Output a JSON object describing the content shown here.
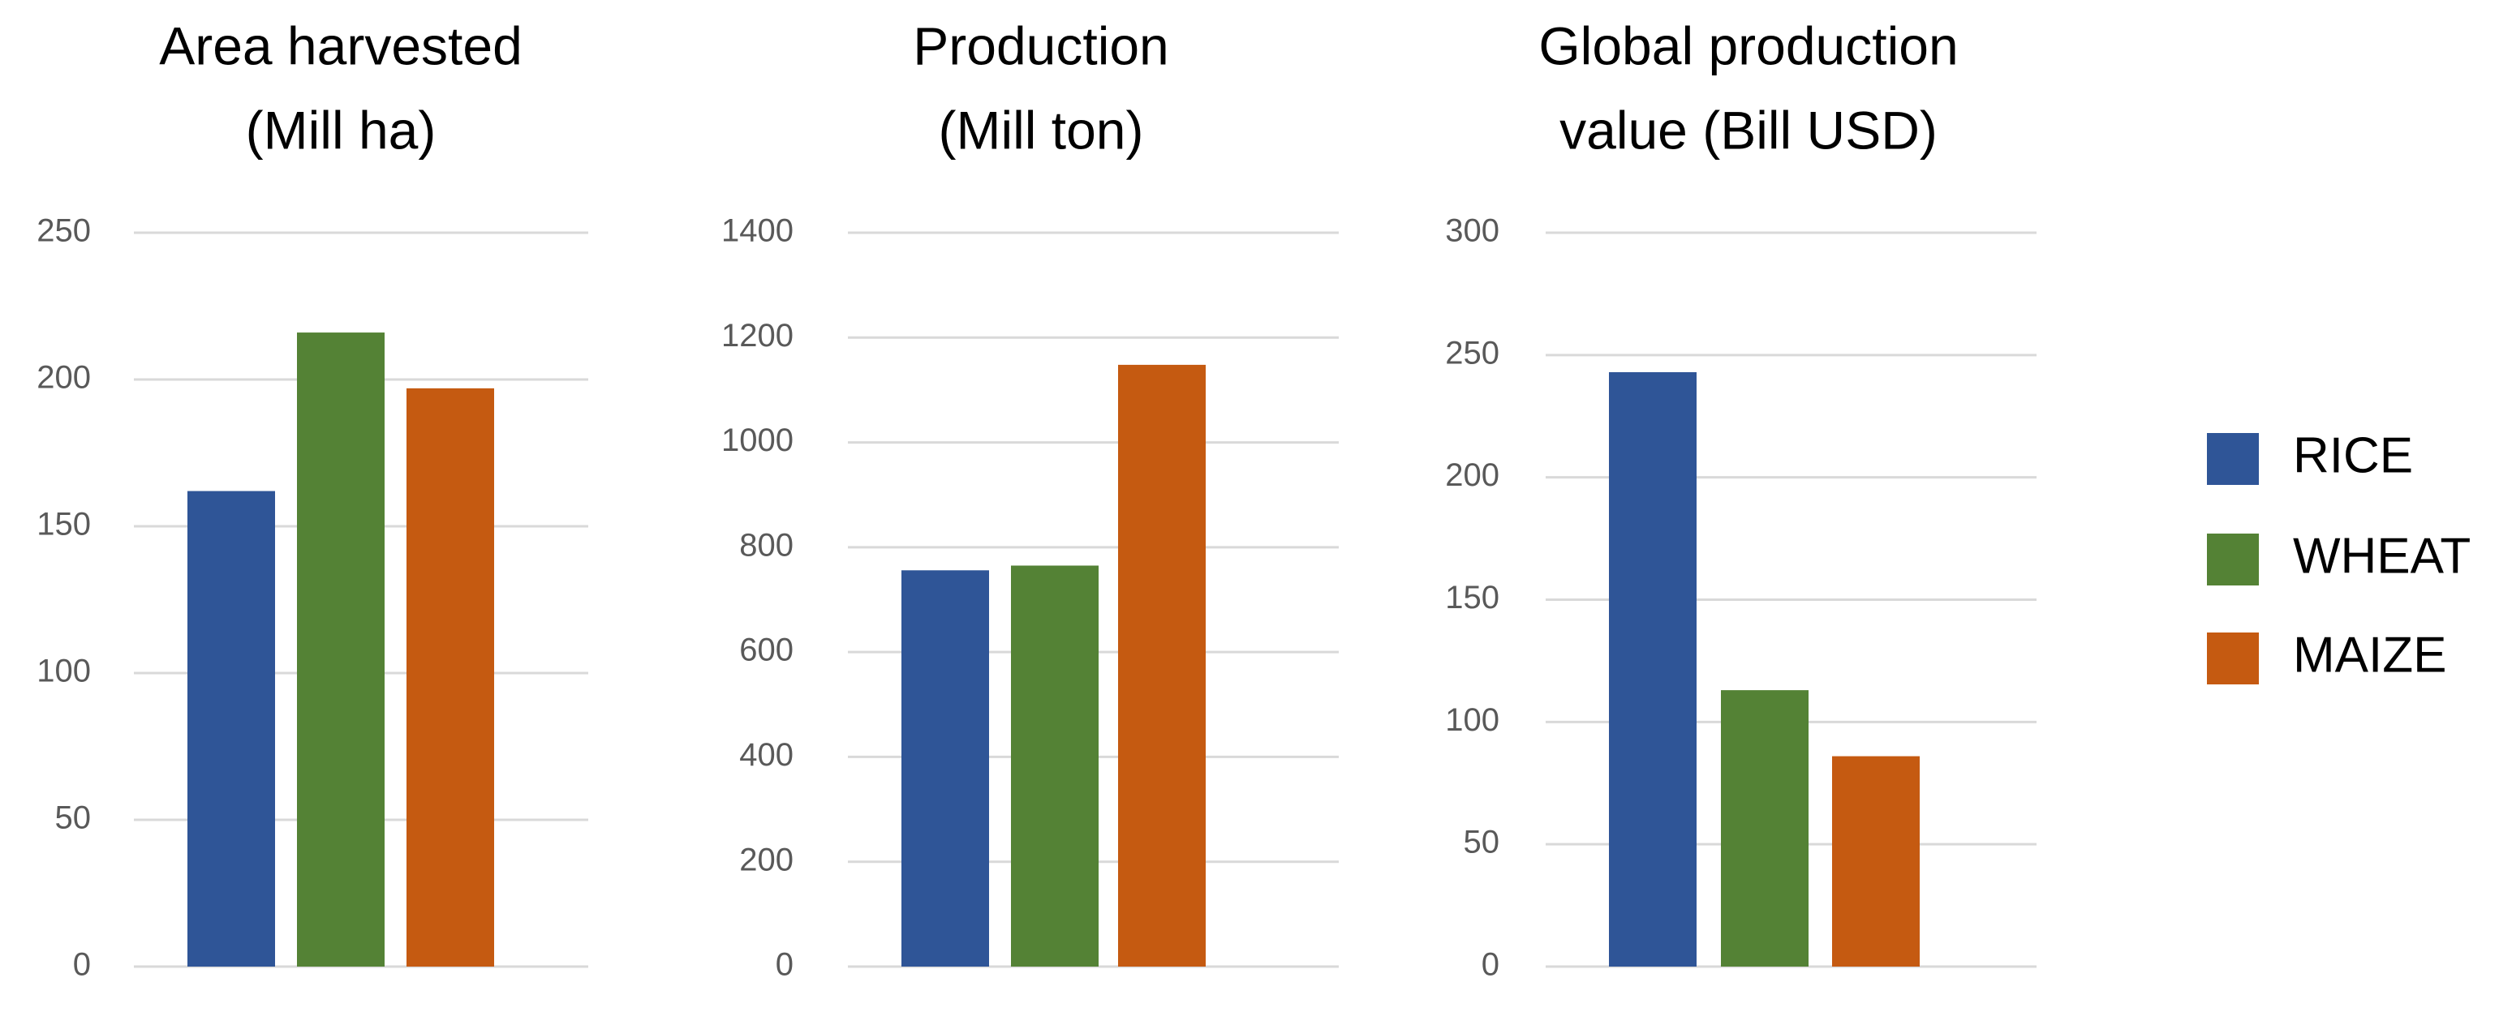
{
  "colors": {
    "RICE": "#2f5597",
    "WHEAT": "#548235",
    "MAIZE": "#c55a11",
    "grid": "#d9d9d9",
    "tick_text": "#595959"
  },
  "legend": {
    "placement": "right",
    "items": [
      {
        "label": "RICE",
        "color": "#2f5597"
      },
      {
        "label": "WHEAT",
        "color": "#548235"
      },
      {
        "label": "MAIZE",
        "color": "#c55a11"
      }
    ]
  },
  "chart_data": [
    {
      "type": "bar",
      "title_lines": [
        "Area harvested",
        "(Mill ha)"
      ],
      "categories": [
        "RICE",
        "WHEAT",
        "MAIZE"
      ],
      "values": [
        162,
        216,
        197
      ],
      "ylim": [
        0,
        250
      ],
      "yticks": [
        0,
        50,
        100,
        150,
        200,
        250
      ],
      "grid": true
    },
    {
      "type": "bar",
      "title_lines": [
        "Production",
        "(Mill ton)"
      ],
      "categories": [
        "RICE",
        "WHEAT",
        "MAIZE"
      ],
      "values": [
        756,
        765,
        1148
      ],
      "ylim": [
        0,
        1400
      ],
      "yticks": [
        0,
        200,
        400,
        600,
        800,
        1000,
        1200,
        1400
      ],
      "grid": true
    },
    {
      "type": "bar",
      "title_lines": [
        "Global production",
        "value (Bill USD)"
      ],
      "categories": [
        "RICE",
        "WHEAT",
        "MAIZE"
      ],
      "values": [
        243,
        113,
        86
      ],
      "ylim": [
        0,
        300
      ],
      "yticks": [
        0,
        50,
        100,
        150,
        200,
        250,
        300
      ],
      "grid": true
    }
  ]
}
